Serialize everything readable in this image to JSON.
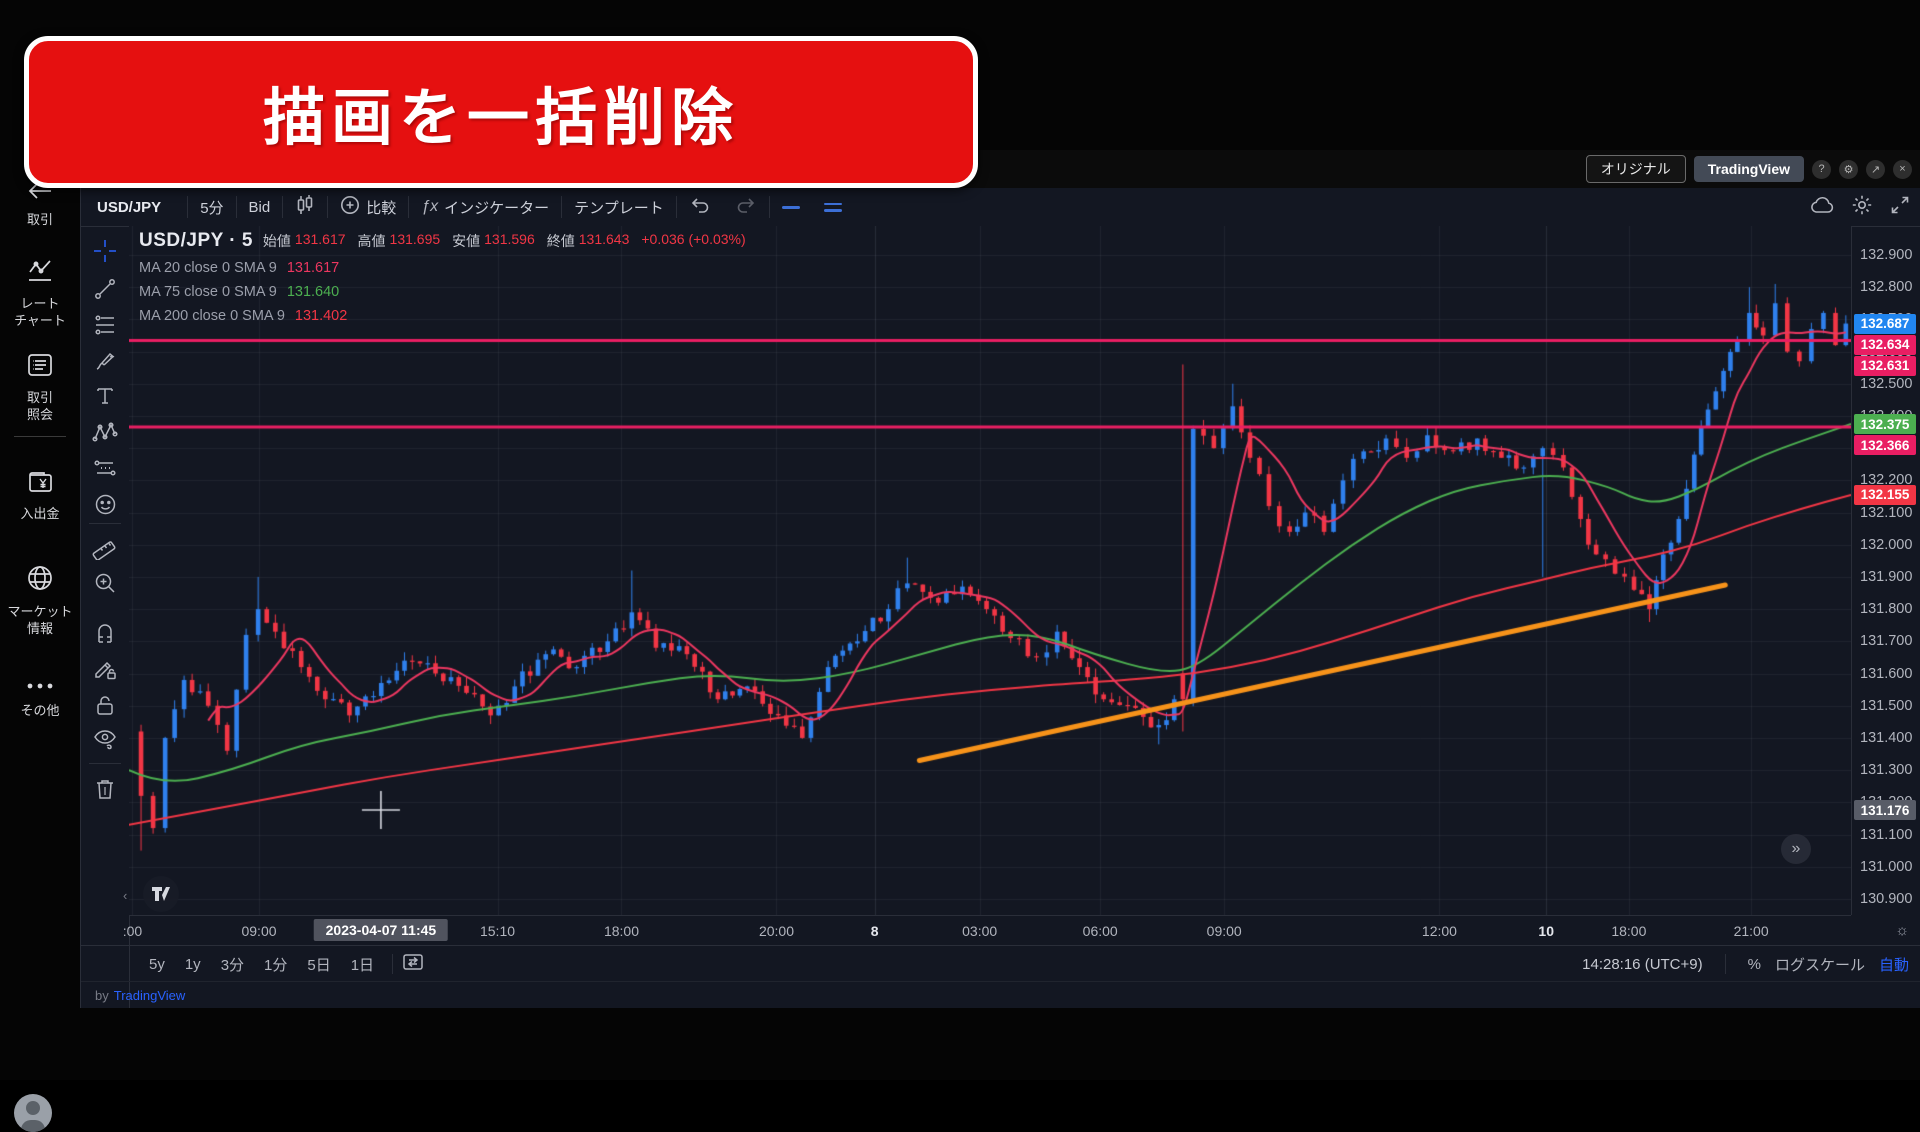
{
  "banner": {
    "text": "描画を一括削除"
  },
  "window": {
    "original_label": "オリジナル",
    "tradingview_label": "TradingView",
    "help": "?",
    "settings": "⚙",
    "popout": "↗",
    "close": "×"
  },
  "sidebar": {
    "items": [
      {
        "label": "取引",
        "icon": "back-arrow-icon"
      },
      {
        "label": "レート\nチャート",
        "icon": "line-chart-icon"
      },
      {
        "label": "取引\n照会",
        "icon": "list-icon"
      },
      {
        "label": "入出金",
        "icon": "wallet-yen-icon"
      },
      {
        "label": "マーケット\n情報",
        "icon": "globe-icon"
      },
      {
        "label": "その他",
        "icon": "ellipsis-icon"
      }
    ]
  },
  "toolbar": {
    "symbol": "USD/JPY",
    "interval": "5分",
    "price_type": "Bid",
    "compare": "比較",
    "fx": "ƒx",
    "indicators": "インジケーター",
    "templates": "テンプレート"
  },
  "drawing_toolbar": {
    "tools": [
      "crosshair",
      "trend-line",
      "fib-retracement",
      "brush",
      "text",
      "xabcd-pattern",
      "forecast",
      "emoji",
      "ruler",
      "zoom-in",
      "magnet",
      "drawing-sync-lock",
      "lock-all-drawings",
      "hide-all-drawings",
      "remove-drawings"
    ]
  },
  "legend": {
    "title": "USD/JPY · 5",
    "open_label": "始値",
    "open": "131.617",
    "high_label": "高値",
    "high": "131.695",
    "low_label": "安値",
    "low": "131.596",
    "close_label": "終値",
    "close": "131.643",
    "change": "+0.036 (+0.03%)",
    "ma": [
      {
        "name": "MA 20 close 0 SMA 9",
        "value": "131.617",
        "color": "#ec3760"
      },
      {
        "name": "MA 75 close 0 SMA 9",
        "value": "131.640",
        "color": "#4caf50"
      },
      {
        "name": "MA 200 close 0 SMA 9",
        "value": "131.402",
        "color": "#f23645"
      }
    ]
  },
  "bottom_toolbar": {
    "ranges": [
      "5y",
      "1y",
      "3分",
      "1分",
      "5日",
      "1日"
    ],
    "clock": "14:28:16 (UTC+9)",
    "percent": "%",
    "log_scale": "ログスケール",
    "auto": "自動"
  },
  "statusbar": {
    "by": "by",
    "brand": "TradingView"
  },
  "chart_data": {
    "type": "candlestick",
    "symbol": "USD/JPY",
    "interval": "5-minute",
    "colors": {
      "up": "#2f80ed",
      "down": "#f23645",
      "ma20": "#ec3760",
      "ma75": "#4caf50",
      "ma200": "#f23645",
      "drawing_line": "#e91e63",
      "trend_line": "#f7931a",
      "grid": "rgba(140,148,166,0.10)",
      "background": "#131722",
      "current_price_tag": "#2186f0",
      "crosshair_tag": "#585c67"
    },
    "y_axis": {
      "min": 130.85,
      "max": 132.99,
      "ticks": [
        "132.900",
        "132.800",
        "132.700",
        "132.600",
        "132.500",
        "132.400",
        "132.300",
        "132.200",
        "132.100",
        "132.000",
        "131.900",
        "131.800",
        "131.700",
        "131.600",
        "131.500",
        "131.400",
        "131.300",
        "131.200",
        "131.100",
        "131.000",
        "130.900"
      ]
    },
    "x_axis": {
      "ticks": [
        {
          "label": ":00",
          "f": 0.002
        },
        {
          "label": "09:00",
          "f": 0.0755
        },
        {
          "label": "15:10",
          "f": 0.214
        },
        {
          "label": "18:00",
          "f": 0.286
        },
        {
          "label": "20:00",
          "f": 0.376
        },
        {
          "label": "8",
          "f": 0.433,
          "day": true
        },
        {
          "label": "03:00",
          "f": 0.494
        },
        {
          "label": "06:00",
          "f": 0.564
        },
        {
          "label": "09:00",
          "f": 0.636
        },
        {
          "label": "12:00",
          "f": 0.761
        },
        {
          "label": "10",
          "f": 0.823,
          "day": true
        },
        {
          "label": "18:00",
          "f": 0.871
        },
        {
          "label": "21:00",
          "f": 0.942
        }
      ]
    },
    "candle_count": 208,
    "price_anchors": [
      {
        "f": 0.0,
        "c": 131.42
      },
      {
        "f": 0.007,
        "c": 131.22,
        "l": 131.05
      },
      {
        "f": 0.014,
        "c": 131.12
      },
      {
        "f": 0.021,
        "c": 131.4
      },
      {
        "f": 0.032,
        "c": 131.58
      },
      {
        "f": 0.046,
        "c": 131.5
      },
      {
        "f": 0.057,
        "c": 131.36
      },
      {
        "f": 0.068,
        "c": 131.72
      },
      {
        "f": 0.075,
        "c": 131.8,
        "h": 131.9
      },
      {
        "f": 0.085,
        "c": 131.73
      },
      {
        "f": 0.1,
        "c": 131.62
      },
      {
        "f": 0.114,
        "c": 131.52
      },
      {
        "f": 0.128,
        "c": 131.47
      },
      {
        "f": 0.142,
        "c": 131.53
      },
      {
        "f": 0.16,
        "c": 131.64
      },
      {
        "f": 0.178,
        "c": 131.6
      },
      {
        "f": 0.196,
        "c": 131.54
      },
      {
        "f": 0.21,
        "c": 131.47
      },
      {
        "f": 0.224,
        "c": 131.56
      },
      {
        "f": 0.242,
        "c": 131.66
      },
      {
        "f": 0.26,
        "c": 131.62
      },
      {
        "f": 0.278,
        "c": 131.7
      },
      {
        "f": 0.292,
        "c": 131.79,
        "h": 131.92
      },
      {
        "f": 0.306,
        "c": 131.68
      },
      {
        "f": 0.324,
        "c": 131.66
      },
      {
        "f": 0.342,
        "c": 131.52
      },
      {
        "f": 0.359,
        "c": 131.56
      },
      {
        "f": 0.377,
        "c": 131.47
      },
      {
        "f": 0.391,
        "c": 131.4
      },
      {
        "f": 0.406,
        "c": 131.62
      },
      {
        "f": 0.423,
        "c": 131.7
      },
      {
        "f": 0.441,
        "c": 131.8
      },
      {
        "f": 0.452,
        "c": 131.88,
        "h": 131.96
      },
      {
        "f": 0.47,
        "c": 131.82
      },
      {
        "f": 0.484,
        "c": 131.87
      },
      {
        "f": 0.498,
        "c": 131.8
      },
      {
        "f": 0.512,
        "c": 131.71
      },
      {
        "f": 0.527,
        "c": 131.65
      },
      {
        "f": 0.539,
        "c": 131.73
      },
      {
        "f": 0.552,
        "c": 131.62
      },
      {
        "f": 0.566,
        "c": 131.52
      },
      {
        "f": 0.58,
        "c": 131.5
      },
      {
        "f": 0.598,
        "c": 131.44,
        "l": 131.38
      },
      {
        "f": 0.607,
        "c": 131.52
      },
      {
        "f": 0.612,
        "spike": true,
        "o": 131.6,
        "h": 132.56,
        "l": 131.42,
        "c": 131.52
      },
      {
        "f": 0.618,
        "c": 132.36
      },
      {
        "f": 0.63,
        "c": 132.3
      },
      {
        "f": 0.641,
        "c": 132.43,
        "h": 132.5
      },
      {
        "f": 0.651,
        "c": 132.27
      },
      {
        "f": 0.662,
        "c": 132.12
      },
      {
        "f": 0.674,
        "c": 132.04
      },
      {
        "f": 0.683,
        "c": 132.1
      },
      {
        "f": 0.694,
        "c": 132.04
      },
      {
        "f": 0.705,
        "c": 132.2
      },
      {
        "f": 0.717,
        "c": 132.29
      },
      {
        "f": 0.73,
        "c": 132.33
      },
      {
        "f": 0.742,
        "c": 132.27
      },
      {
        "f": 0.754,
        "c": 132.34
      },
      {
        "f": 0.769,
        "c": 132.29
      },
      {
        "f": 0.783,
        "c": 132.33
      },
      {
        "f": 0.797,
        "c": 132.27
      },
      {
        "f": 0.81,
        "c": 132.24
      },
      {
        "f": 0.821,
        "c": 132.3,
        "l": 131.9
      },
      {
        "f": 0.833,
        "c": 132.24
      },
      {
        "f": 0.843,
        "c": 132.08
      },
      {
        "f": 0.852,
        "c": 131.97
      },
      {
        "f": 0.863,
        "c": 131.91
      },
      {
        "f": 0.874,
        "c": 131.86
      },
      {
        "f": 0.883,
        "c": 131.8,
        "l": 131.76
      },
      {
        "f": 0.891,
        "c": 131.97
      },
      {
        "f": 0.9,
        "c": 132.08
      },
      {
        "f": 0.909,
        "c": 132.28
      },
      {
        "f": 0.917,
        "c": 132.42
      },
      {
        "f": 0.926,
        "c": 132.54
      },
      {
        "f": 0.934,
        "c": 132.63
      },
      {
        "f": 0.941,
        "c": 132.72,
        "h": 132.8
      },
      {
        "f": 0.949,
        "c": 132.65
      },
      {
        "f": 0.956,
        "c": 132.75,
        "h": 132.81
      },
      {
        "f": 0.963,
        "c": 132.6
      },
      {
        "f": 0.97,
        "c": 132.57
      },
      {
        "f": 0.977,
        "c": 132.67
      },
      {
        "f": 0.984,
        "c": 132.72
      },
      {
        "f": 0.991,
        "c": 132.62
      },
      {
        "f": 0.997,
        "c": 132.687
      }
    ],
    "ma75_anchors": [
      {
        "f": 0.0,
        "v": 131.3
      },
      {
        "f": 0.02,
        "v": 131.25
      },
      {
        "f": 0.06,
        "v": 131.3
      },
      {
        "f": 0.1,
        "v": 131.38
      },
      {
        "f": 0.14,
        "v": 131.42
      },
      {
        "f": 0.18,
        "v": 131.47
      },
      {
        "f": 0.22,
        "v": 131.5
      },
      {
        "f": 0.26,
        "v": 131.53
      },
      {
        "f": 0.3,
        "v": 131.57
      },
      {
        "f": 0.34,
        "v": 131.6
      },
      {
        "f": 0.38,
        "v": 131.57
      },
      {
        "f": 0.42,
        "v": 131.6
      },
      {
        "f": 0.46,
        "v": 131.66
      },
      {
        "f": 0.5,
        "v": 131.72
      },
      {
        "f": 0.53,
        "v": 131.72
      },
      {
        "f": 0.56,
        "v": 131.66
      },
      {
        "f": 0.6,
        "v": 131.6
      },
      {
        "f": 0.62,
        "v": 131.62
      },
      {
        "f": 0.65,
        "v": 131.75
      },
      {
        "f": 0.68,
        "v": 131.88
      },
      {
        "f": 0.71,
        "v": 132.0
      },
      {
        "f": 0.74,
        "v": 132.1
      },
      {
        "f": 0.77,
        "v": 132.17
      },
      {
        "f": 0.8,
        "v": 132.2
      },
      {
        "f": 0.83,
        "v": 132.22
      },
      {
        "f": 0.86,
        "v": 132.18
      },
      {
        "f": 0.875,
        "v": 132.14
      },
      {
        "f": 0.89,
        "v": 132.13
      },
      {
        "f": 0.91,
        "v": 132.17
      },
      {
        "f": 0.93,
        "v": 132.23
      },
      {
        "f": 0.95,
        "v": 132.28
      },
      {
        "f": 0.97,
        "v": 132.32
      },
      {
        "f": 1.0,
        "v": 132.375
      }
    ],
    "ma200_anchors": [
      {
        "f": 0.0,
        "v": 131.13
      },
      {
        "f": 0.05,
        "v": 131.18
      },
      {
        "f": 0.1,
        "v": 131.23
      },
      {
        "f": 0.15,
        "v": 131.28
      },
      {
        "f": 0.2,
        "v": 131.32
      },
      {
        "f": 0.25,
        "v": 131.36
      },
      {
        "f": 0.3,
        "v": 131.4
      },
      {
        "f": 0.35,
        "v": 131.44
      },
      {
        "f": 0.4,
        "v": 131.48
      },
      {
        "f": 0.45,
        "v": 131.52
      },
      {
        "f": 0.5,
        "v": 131.55
      },
      {
        "f": 0.55,
        "v": 131.57
      },
      {
        "f": 0.58,
        "v": 131.58
      },
      {
        "f": 0.62,
        "v": 131.6
      },
      {
        "f": 0.66,
        "v": 131.64
      },
      {
        "f": 0.7,
        "v": 131.7
      },
      {
        "f": 0.74,
        "v": 131.77
      },
      {
        "f": 0.78,
        "v": 131.84
      },
      {
        "f": 0.82,
        "v": 131.89
      },
      {
        "f": 0.85,
        "v": 131.93
      },
      {
        "f": 0.88,
        "v": 131.96
      },
      {
        "f": 0.91,
        "v": 132.0
      },
      {
        "f": 0.94,
        "v": 132.06
      },
      {
        "f": 0.97,
        "v": 132.11
      },
      {
        "f": 1.0,
        "v": 132.155
      }
    ],
    "ma20_window": 7,
    "drawings": {
      "horizontal_lines": [
        {
          "price": 132.634
        },
        {
          "price": 132.366
        }
      ],
      "trend_line": {
        "f1": 0.459,
        "p1": 131.33,
        "f2": 0.927,
        "p2": 131.875
      }
    },
    "crosshair": {
      "f": 0.1463,
      "price": 131.176,
      "time_label": "2023-04-07  11:45"
    },
    "price_tags": [
      {
        "label": "132.687",
        "price": 132.687,
        "bg": "#2186f0"
      },
      {
        "label": "132.634",
        "price": 132.634,
        "bg": "#e91e63"
      },
      {
        "label": "132.631",
        "price": 132.631,
        "bg": "#e91e63"
      },
      {
        "label": "132.375",
        "price": 132.375,
        "bg": "#4caf50"
      },
      {
        "label": "132.366",
        "price": 132.366,
        "bg": "#e91e63"
      },
      {
        "label": "132.155",
        "price": 132.155,
        "bg": "#f23645"
      },
      {
        "label": "131.176",
        "price": 131.176,
        "bg": "#585c67"
      }
    ]
  }
}
